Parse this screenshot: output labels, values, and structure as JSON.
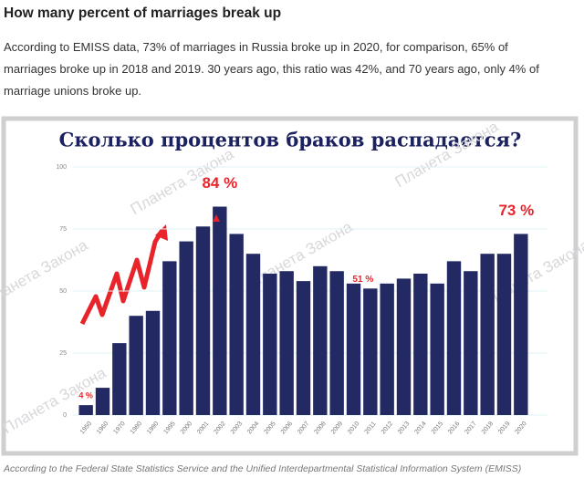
{
  "article": {
    "title": "How many percent of marriages break up",
    "paragraph": [
      "According to EMISS data, 73% of marriages in Russia broke up in 2020, for comparison, 65% of",
      "marriages broke up in 2018 and 2019. 30 years ago, this ratio was 42%, and 70 years ago, only 4% of",
      "marriage unions broke up."
    ],
    "caption": "According to the Federal State Statistics Service and the Unified Interdepartmental Statistical Information System (EMISS)",
    "watermark": "Планета Закона"
  },
  "chart_data": {
    "type": "bar",
    "title": "Сколько процентов браков распадается?",
    "categories": [
      "1950",
      "1960",
      "1970",
      "1980",
      "1990",
      "1995",
      "2000",
      "2001",
      "2002",
      "2003",
      "2004",
      "2005",
      "2006",
      "2007",
      "2008",
      "2009",
      "2010",
      "2011",
      "2012",
      "2013",
      "2014",
      "2015",
      "2016",
      "2017",
      "2018",
      "2019",
      "2020"
    ],
    "values": [
      4,
      11,
      29,
      40,
      42,
      62,
      70,
      76,
      84,
      73,
      65,
      57,
      58,
      54,
      60,
      58,
      53,
      51,
      53,
      55,
      57,
      53,
      62,
      58,
      65,
      65,
      73
    ],
    "value_labels": [
      "4 %",
      null,
      null,
      null,
      null,
      null,
      null,
      null,
      "84 %",
      null,
      null,
      null,
      null,
      null,
      null,
      null,
      null,
      "51 %",
      null,
      null,
      null,
      null,
      null,
      null,
      null,
      null,
      "73 %"
    ],
    "color": "#232a63",
    "label_color": "#e8242a",
    "ylim": [
      0,
      100
    ],
    "yticks": [
      0,
      25,
      50,
      75,
      100
    ],
    "grid": true
  }
}
